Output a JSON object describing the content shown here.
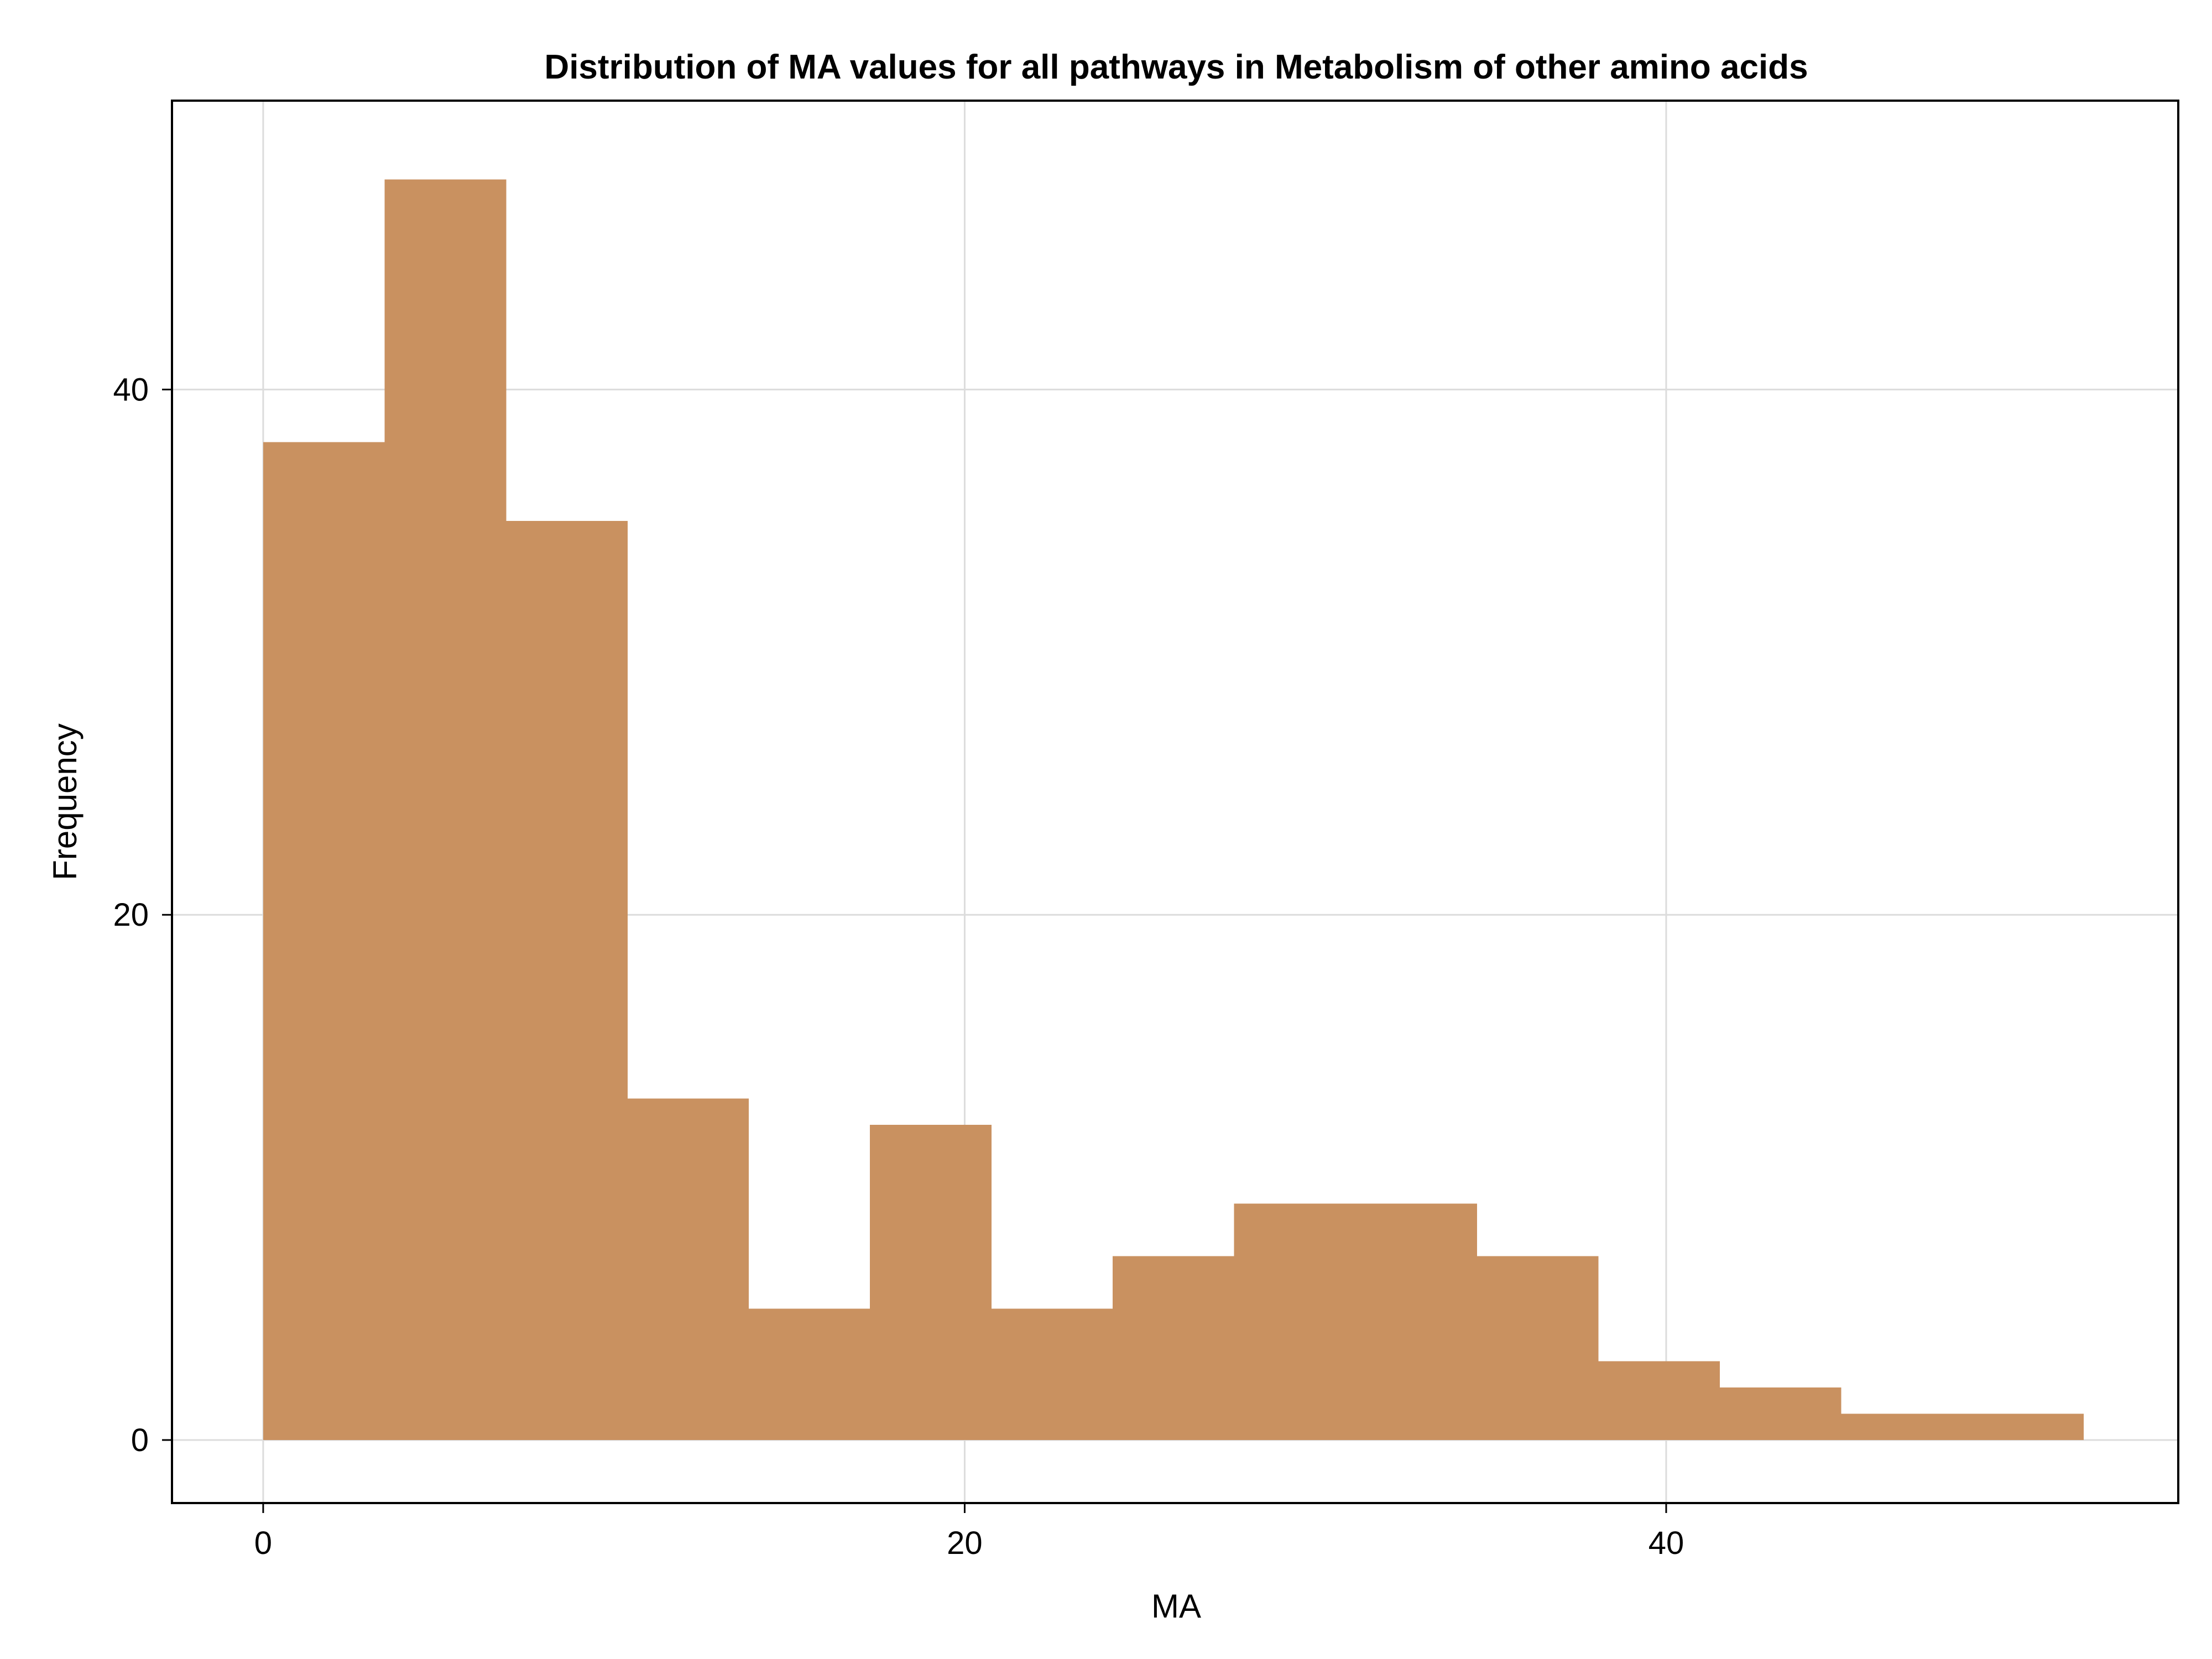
{
  "chart_data": {
    "type": "bar",
    "title": "Distribution of MA values for all pathways in Metabolism of other amino acids",
    "xlabel": "MA",
    "ylabel": "Frequency",
    "bin_width": 3.46,
    "bin_edges": [
      0,
      3.46,
      6.92,
      10.38,
      13.84,
      17.3,
      20.76,
      24.22,
      27.68,
      31.14,
      34.6,
      38.06,
      41.52,
      44.98,
      48.44,
      51.9
    ],
    "values": [
      38,
      48,
      35,
      13,
      5,
      12,
      5,
      7,
      9,
      9,
      7,
      3,
      2,
      1,
      1
    ],
    "xlim": [
      -2.6,
      54.6
    ],
    "ylim": [
      -2.4,
      51.0
    ],
    "xticks": [
      0,
      20,
      40
    ],
    "xtick_labels": [
      "0",
      "20",
      "40"
    ],
    "yticks": [
      0,
      20,
      40
    ],
    "ytick_labels": [
      "0",
      "20",
      "40"
    ],
    "grid": true,
    "bar_color": "#c99160",
    "legend": "none"
  }
}
